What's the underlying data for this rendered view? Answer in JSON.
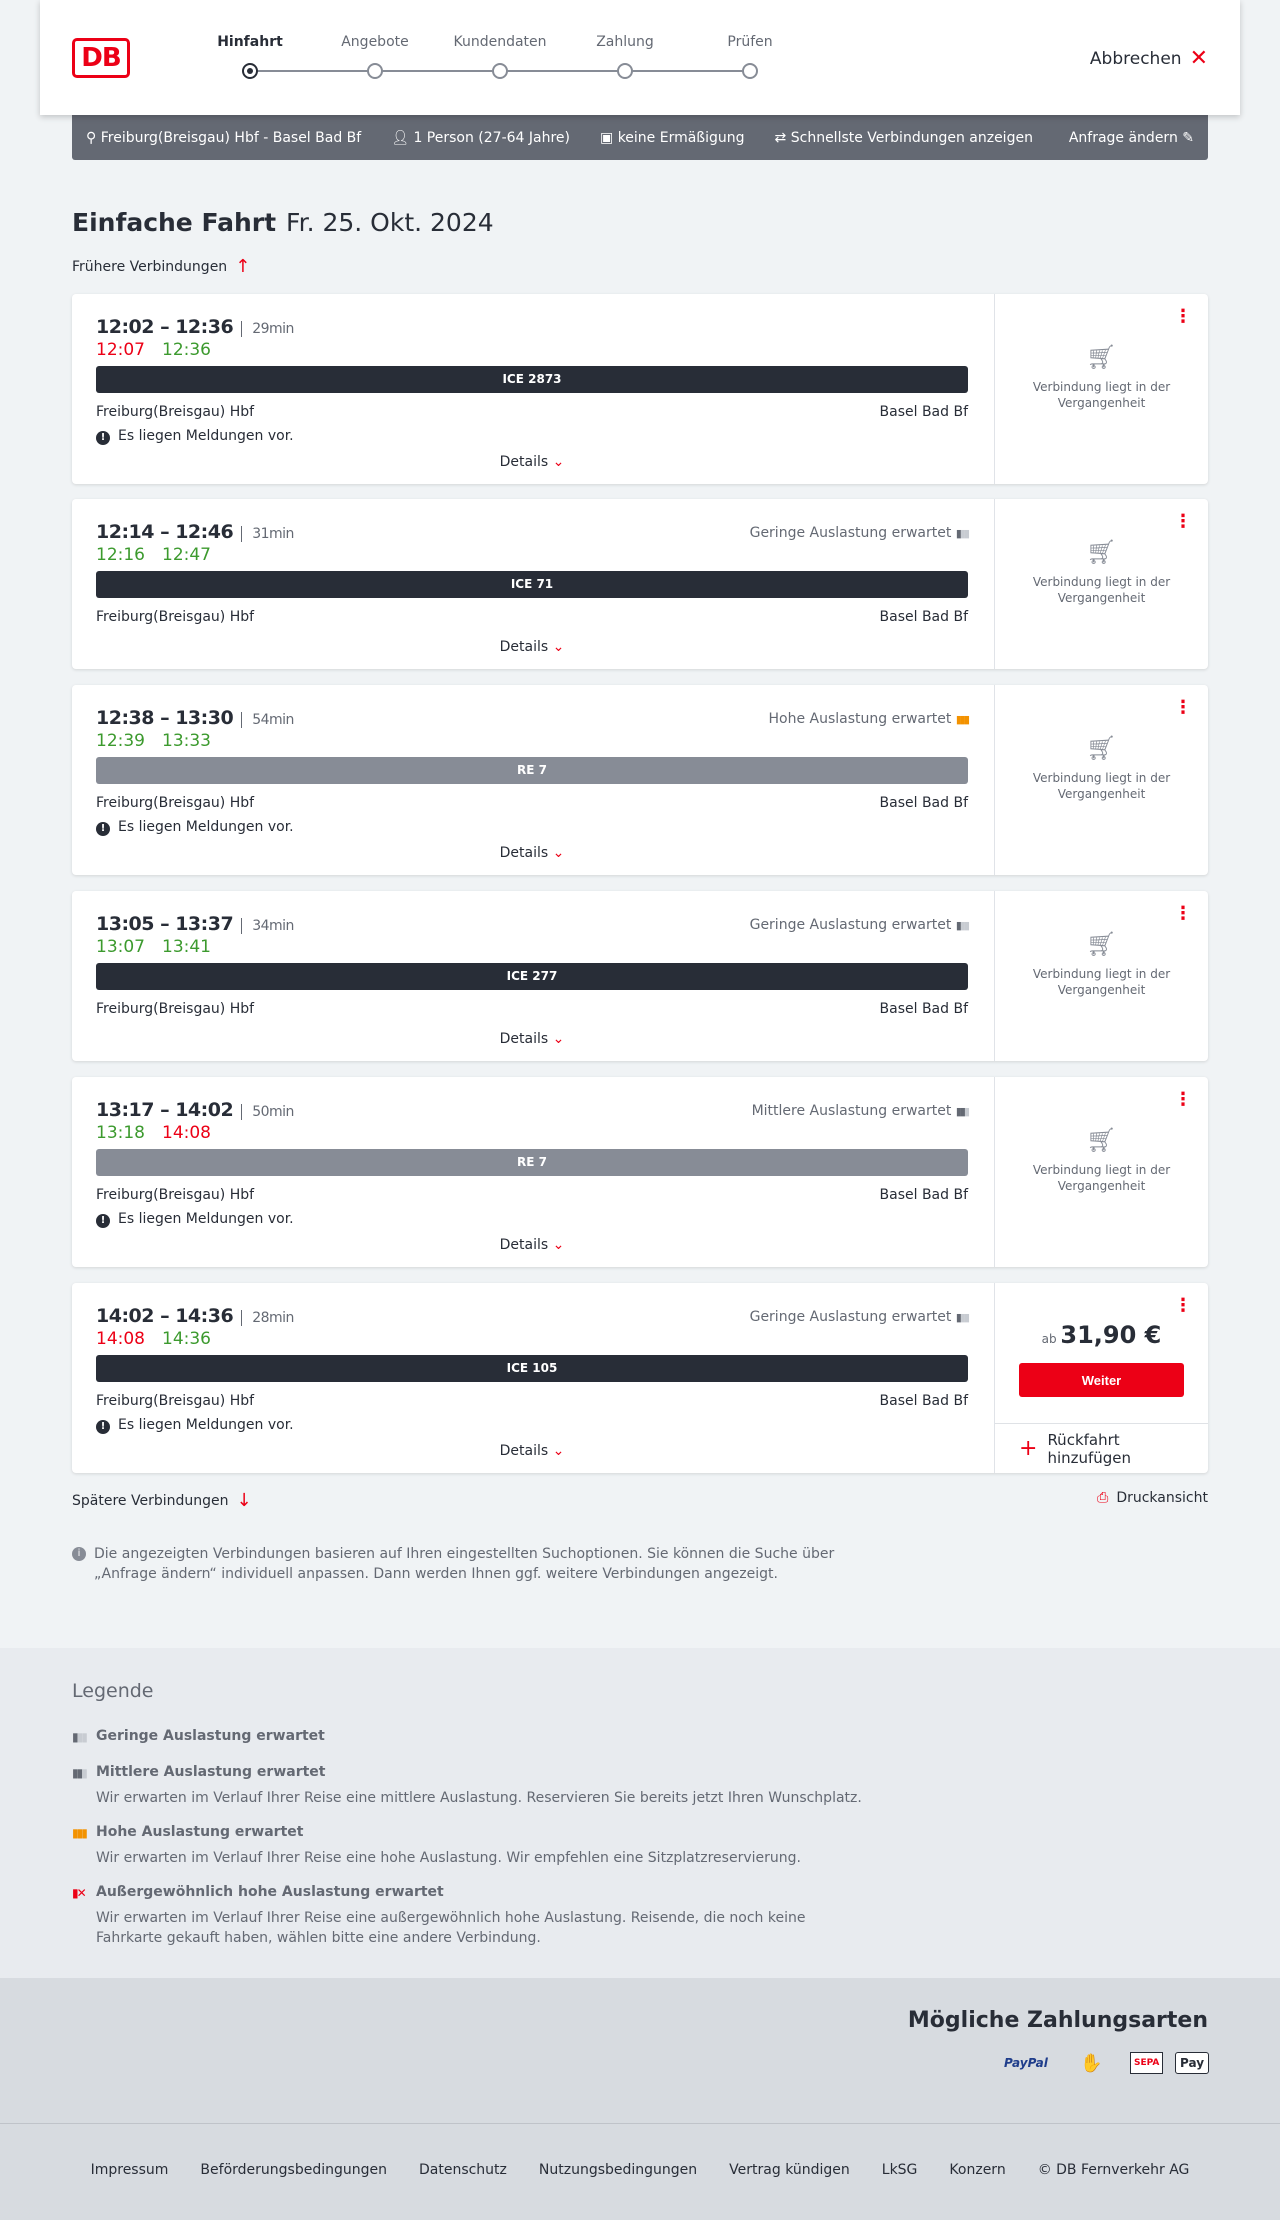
{
  "header": {
    "logo": "DB",
    "steps": [
      "Hinfahrt",
      "Angebote",
      "Kundendaten",
      "Zahlung",
      "Prüfen"
    ],
    "active_step": 0,
    "cancel": "Abbrechen"
  },
  "search": {
    "route": "Freiburg(Breisgau) Hbf - Basel Bad Bf",
    "passengers": "1 Person (27-64 Jahre)",
    "discount": "keine Ermäßigung",
    "fastest": "Schnellste Verbindungen anzeigen",
    "edit": "Anfrage ändern"
  },
  "title": {
    "main": "Einfache Fahrt",
    "date": "Fr. 25. Okt. 2024"
  },
  "earlier": "Frühere Verbindungen",
  "later": "Spätere Verbindungen",
  "print": "Druckansicht",
  "colors": {
    "accent": "#ec0016",
    "delay": "#ec0016",
    "ontime": "#3c9a2e",
    "ice": "#282d37",
    "regional": "#878c96",
    "high_load": "#f39200"
  },
  "connection_labels": {
    "details": "Details",
    "message": "Es liegen Meldungen vor.",
    "past": "Verbindung liegt in der Vergangenheit",
    "from": "Freiburg(Breisgau) Hbf",
    "to": "Basel Bad Bf",
    "price_prefix": "ab",
    "continue": "Weiter",
    "add_return": "Rückfahrt hinzufügen"
  },
  "connections": [
    {
      "times": "12:02 – 12:36",
      "duration": "29min",
      "rt_dep": "12:07",
      "rt_dep_status": "delay",
      "rt_arr": "12:36",
      "rt_arr_status": "ontime",
      "train": "ICE 2873",
      "type": "ice",
      "load": "",
      "message": true,
      "past": true
    },
    {
      "times": "12:14 – 12:46",
      "duration": "31min",
      "rt_dep": "12:16",
      "rt_dep_status": "ontime",
      "rt_arr": "12:47",
      "rt_arr_status": "ontime",
      "train": "ICE 71",
      "type": "ice",
      "load": "Geringe Auslastung erwartet",
      "load_level": 1,
      "message": false,
      "past": true
    },
    {
      "times": "12:38 – 13:30",
      "duration": "54min",
      "rt_dep": "12:39",
      "rt_dep_status": "ontime",
      "rt_arr": "13:33",
      "rt_arr_status": "ontime",
      "train": "RE 7",
      "type": "regional",
      "load": "Hohe Auslastung erwartet",
      "load_level": 3,
      "message": true,
      "past": true
    },
    {
      "times": "13:05 – 13:37",
      "duration": "34min",
      "rt_dep": "13:07",
      "rt_dep_status": "ontime",
      "rt_arr": "13:41",
      "rt_arr_status": "ontime",
      "train": "ICE 277",
      "type": "ice",
      "load": "Geringe Auslastung erwartet",
      "load_level": 1,
      "message": false,
      "past": true
    },
    {
      "times": "13:17 – 14:02",
      "duration": "50min",
      "rt_dep": "13:18",
      "rt_dep_status": "ontime",
      "rt_arr": "14:08",
      "rt_arr_status": "delay",
      "train": "RE 7",
      "type": "regional",
      "load": "Mittlere Auslastung erwartet",
      "load_level": 2,
      "message": true,
      "past": true
    },
    {
      "times": "14:02 – 14:36",
      "duration": "28min",
      "rt_dep": "14:08",
      "rt_dep_status": "delay",
      "rt_arr": "14:36",
      "rt_arr_status": "ontime",
      "train": "ICE 105",
      "type": "ice",
      "load": "Geringe Auslastung erwartet",
      "load_level": 1,
      "message": true,
      "past": false,
      "price": "31,90 €"
    }
  ],
  "info_note": "Die angezeigten Verbindungen basieren auf Ihren eingestellten Suchoptionen. Sie können die Suche über „Anfrage ändern“ individuell anpassen. Dann werden Ihnen ggf. weitere Verbindungen angezeigt.",
  "legend": {
    "title": "Legende",
    "items": [
      {
        "title": "Geringe Auslastung erwartet",
        "desc": ""
      },
      {
        "title": "Mittlere Auslastung erwartet",
        "desc": "Wir erwarten im Verlauf Ihrer Reise eine mittlere Auslastung. Reservieren Sie bereits jetzt Ihren Wunschplatz."
      },
      {
        "title": "Hohe Auslastung erwartet",
        "desc": "Wir erwarten im Verlauf Ihrer Reise eine hohe Auslastung. Wir empfehlen eine Sitzplatzreservierung."
      },
      {
        "title": "Außergewöhnlich hohe Auslastung erwartet",
        "desc": "Wir erwarten im Verlauf Ihrer Reise eine außergewöhnlich hohe Auslastung. Reisende, die noch keine Fahrkarte gekauft haben, wählen bitte eine andere Verbindung."
      }
    ]
  },
  "payment": {
    "title": "Mögliche Zahlungsarten",
    "methods": [
      "PayPal",
      "Kontaktlos",
      "SEPA",
      "Pay"
    ]
  },
  "footer": [
    "Impressum",
    "Beförderungsbedingungen",
    "Datenschutz",
    "Nutzungsbedingungen",
    "Vertrag kündigen",
    "LkSG",
    "Konzern",
    "© DB Fernverkehr AG"
  ]
}
